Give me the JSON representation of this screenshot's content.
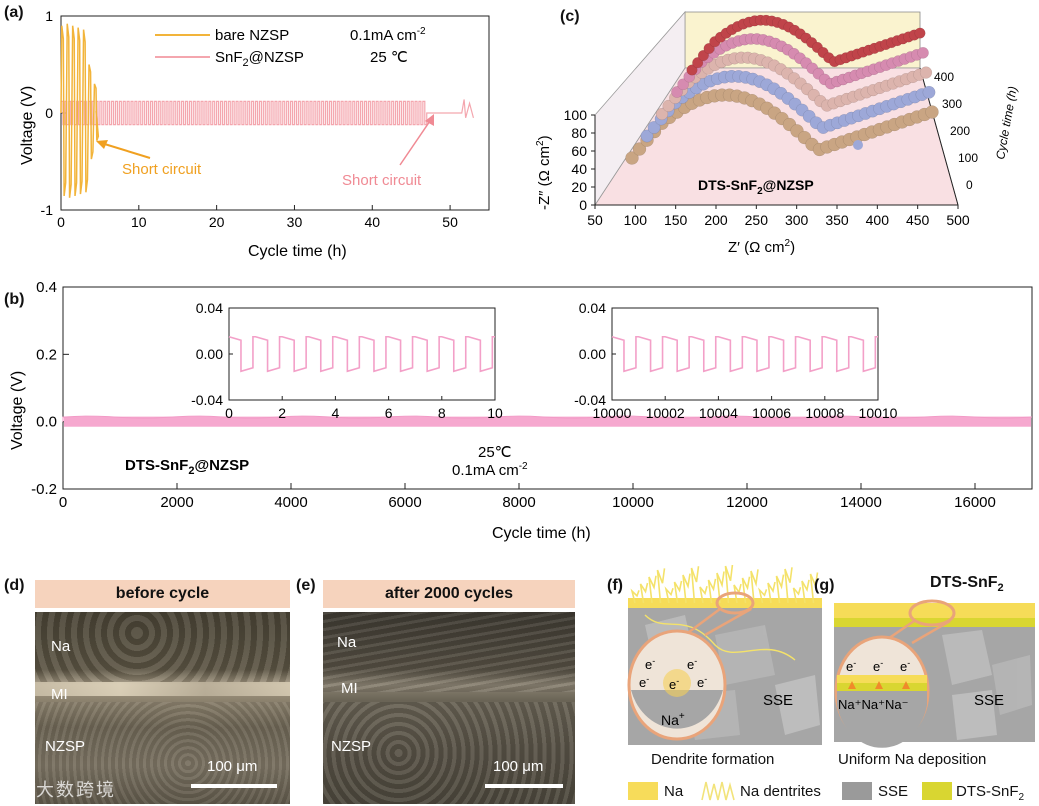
{
  "panel_a": {
    "label": "(a)",
    "legend": [
      {
        "name": "bare NZSP",
        "color": "#f2b43a"
      },
      {
        "name": "SnF2@NZSP",
        "color": "#f4a6ae"
      }
    ],
    "legend_sub": {
      "prefix": "SnF",
      "sub": "2",
      "suffix": "@NZSP"
    },
    "current": "0.1mA cm",
    "current_sup": "-2",
    "temperature": "25 ℃",
    "annotation_bare": "Short circuit",
    "annotation_snf2": "Short circuit",
    "ylabel": "Voltage (V)",
    "xlabel": "Cycle time (h)",
    "xticks": [
      "0",
      "10",
      "20",
      "30",
      "40",
      "50"
    ],
    "yticks": [
      "-1",
      "0",
      "1"
    ]
  },
  "panel_b": {
    "label": "(b)",
    "ylabel": "Voltage (V)",
    "xlabel": "Cycle time (h)",
    "xticks": [
      "0",
      "2000",
      "4000",
      "6000",
      "8000",
      "10000",
      "12000",
      "14000",
      "16000"
    ],
    "yticks": [
      "-0.2",
      "0.0",
      "0.2",
      "0.4"
    ],
    "sample": {
      "prefix": "DTS-SnF",
      "sub": "2",
      "suffix": "@NZSP"
    },
    "temperature": "25℃",
    "current": "0.1mA cm",
    "current_sup": "-2",
    "inset1": {
      "xticks": [
        "0",
        "2",
        "4",
        "6",
        "8",
        "10"
      ],
      "yticks": [
        "0.04",
        "0.00",
        "-0.04"
      ]
    },
    "inset2": {
      "xticks": [
        "10000",
        "10002",
        "10004",
        "10006",
        "10008",
        "10010"
      ],
      "yticks": [
        "0.04",
        "0.00",
        "-0.04"
      ]
    }
  },
  "panel_c": {
    "label": "(c)",
    "ylabel_main": "-Z″ (Ω cm",
    "ylabel_sup": "2",
    "xlabel": "Z′ (Ω cm",
    "xlabel_sup": "2",
    "zlabel": "Cycle time (h)",
    "xticks": [
      "50",
      "100",
      "150",
      "200",
      "250",
      "300",
      "350",
      "400",
      "450",
      "500"
    ],
    "yticks": [
      "0",
      "20",
      "40",
      "60",
      "80",
      "100"
    ],
    "zticks": [
      "0",
      "100",
      "200",
      "300",
      "400"
    ],
    "sample": {
      "prefix": "DTS-SnF",
      "sub": "2",
      "suffix": "@NZSP"
    }
  },
  "panel_d": {
    "label": "(d)",
    "banner": "before cycle",
    "labels": [
      "Na",
      "MI",
      "NZSP"
    ],
    "scalebar": "100 μm"
  },
  "panel_e": {
    "label": "(e)",
    "banner": "after 2000 cycles",
    "labels": [
      "Na",
      "MI",
      "NZSP"
    ],
    "scalebar": "100 μm"
  },
  "panel_f": {
    "label": "(f)",
    "sse": "SSE",
    "ion": "Na",
    "ion_sup": "+",
    "caption": "Dendrite formation"
  },
  "panel_g": {
    "label": "(g)",
    "title": {
      "prefix": "DTS-SnF",
      "sub": "2"
    },
    "sse": "SSE",
    "ions": "Na⁺Na⁺Na⁻",
    "caption": "Uniform Na deposition"
  },
  "legend_bottom": [
    {
      "label": "Na",
      "color": "#f7dc5a"
    },
    {
      "label": "Na dentrites",
      "color": "#f2e37a"
    },
    {
      "label": "SSE",
      "color": "#9a9a9a"
    },
    {
      "label": "DTS-SnF",
      "sub": "2",
      "color": "#d9d631"
    }
  ],
  "watermark": "大数跨境",
  "chart_data": [
    {
      "type": "line",
      "title": "(a)",
      "xlabel": "Cycle time (h)",
      "ylabel": "Voltage (V)",
      "xlim": [
        0,
        55
      ],
      "ylim": [
        -1,
        1
      ],
      "series": [
        {
          "name": "bare NZSP",
          "amplitude_V": 0.9,
          "x_range": [
            0,
            4.5
          ],
          "event": "Short circuit at ~4 h"
        },
        {
          "name": "SnF2@NZSP",
          "amplitude_V": 0.12,
          "x_range": [
            0,
            53
          ],
          "event": "Short circuit at ~47 h"
        }
      ]
    },
    {
      "type": "line",
      "title": "(b)",
      "xlabel": "Cycle time (h)",
      "ylabel": "Voltage (V)",
      "xlim": [
        0,
        17000
      ],
      "ylim": [
        -0.2,
        0.4
      ],
      "series": [
        {
          "name": "DTS-SnF2@NZSP",
          "amplitude_V": 0.015,
          "x_range": [
            0,
            17000
          ]
        }
      ],
      "insets": [
        {
          "xlim": [
            0,
            10
          ],
          "ylim": [
            -0.04,
            0.04
          ]
        },
        {
          "xlim": [
            10000,
            10010
          ],
          "ylim": [
            -0.04,
            0.04
          ]
        }
      ]
    },
    {
      "type": "scatter",
      "title": "(c)",
      "xlabel": "Z′ (Ω cm2)",
      "ylabel": "-Z″ (Ω cm2)",
      "xlim": [
        50,
        500
      ],
      "ylim": [
        0,
        100
      ],
      "series": [
        {
          "name": "0 h",
          "color": "#c9a583"
        },
        {
          "name": "100 h",
          "color": "#9da8d8"
        },
        {
          "name": "200 h",
          "color": "#dcb4ad"
        },
        {
          "name": "300 h",
          "color": "#d68bb0"
        },
        {
          "name": "400 h",
          "color": "#c0444a"
        }
      ]
    }
  ]
}
